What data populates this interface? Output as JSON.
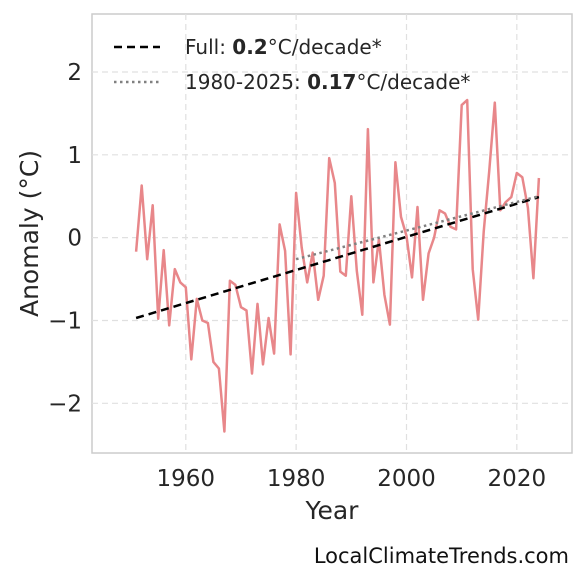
{
  "chart_data": {
    "type": "line",
    "xlabel": "Year",
    "ylabel": "Anomaly (°C)",
    "xlim": [
      1943,
      2030
    ],
    "ylim": [
      -2.6,
      2.7
    ],
    "x_ticks": [
      1960,
      1980,
      2000,
      2020
    ],
    "y_ticks": [
      -2,
      -1,
      0,
      1,
      2
    ],
    "x_tick_labels": [
      "1960",
      "1980",
      "2000",
      "2020"
    ],
    "y_tick_labels": [
      "−2",
      "−1",
      "0",
      "1",
      "2"
    ],
    "grid": true,
    "legend_position": "top-left",
    "series": [
      {
        "color": "#e8878a",
        "x": [
          1951,
          1952,
          1953,
          1954,
          1955,
          1956,
          1957,
          1958,
          1959,
          1960,
          1961,
          1962,
          1963,
          1964,
          1965,
          1966,
          1967,
          1968,
          1969,
          1970,
          1971,
          1972,
          1973,
          1974,
          1975,
          1976,
          1977,
          1978,
          1979,
          1980,
          1981,
          1982,
          1983,
          1984,
          1985,
          1986,
          1987,
          1988,
          1989,
          1990,
          1991,
          1992,
          1993,
          1994,
          1995,
          1996,
          1997,
          1998,
          1999,
          2000,
          2001,
          2002,
          2003,
          2004,
          2005,
          2006,
          2007,
          2008,
          2009,
          2010,
          2011,
          2012,
          2013,
          2014,
          2015,
          2016,
          2017,
          2018,
          2019,
          2020,
          2021,
          2022,
          2023,
          2024
        ],
        "y": [
          -0.17,
          0.63,
          -0.26,
          0.39,
          -0.98,
          -0.15,
          -1.06,
          -0.38,
          -0.54,
          -0.6,
          -1.47,
          -0.74,
          -1.0,
          -1.03,
          -1.5,
          -1.58,
          -2.34,
          -0.52,
          -0.57,
          -0.84,
          -0.88,
          -1.64,
          -0.8,
          -1.53,
          -0.97,
          -1.4,
          0.16,
          -0.16,
          -1.41,
          0.54,
          -0.12,
          -0.54,
          -0.18,
          -0.75,
          -0.46,
          0.96,
          0.66,
          -0.41,
          -0.46,
          0.5,
          -0.4,
          -0.93,
          1.31,
          -0.54,
          -0.02,
          -0.69,
          -1.05,
          0.91,
          0.25,
          0.02,
          -0.48,
          0.37,
          -0.75,
          -0.19,
          0.0,
          0.33,
          0.29,
          0.13,
          0.1,
          1.6,
          1.66,
          -0.38,
          -0.99,
          0.07,
          0.8,
          1.63,
          0.33,
          0.43,
          0.49,
          0.78,
          0.73,
          0.36,
          -0.49,
          0.72
        ]
      },
      {
        "color": "#000000",
        "style": "dashed",
        "x": [
          1951,
          2024
        ],
        "y": [
          -0.97,
          0.49
        ]
      },
      {
        "color": "#808080",
        "style": "dotted",
        "x": [
          1980,
          2024
        ],
        "y": [
          -0.26,
          0.5
        ]
      }
    ],
    "legend": [
      {
        "prefix": "Full: ",
        "rate": "0.2",
        "suffix": "°C/decade*",
        "color": "#000000",
        "style": "dashed"
      },
      {
        "prefix": "1980-2025: ",
        "rate": "0.17",
        "suffix": "°C/decade*",
        "color": "#808080",
        "style": "dotted"
      }
    ]
  },
  "credit": "LocalClimateTrends.com"
}
